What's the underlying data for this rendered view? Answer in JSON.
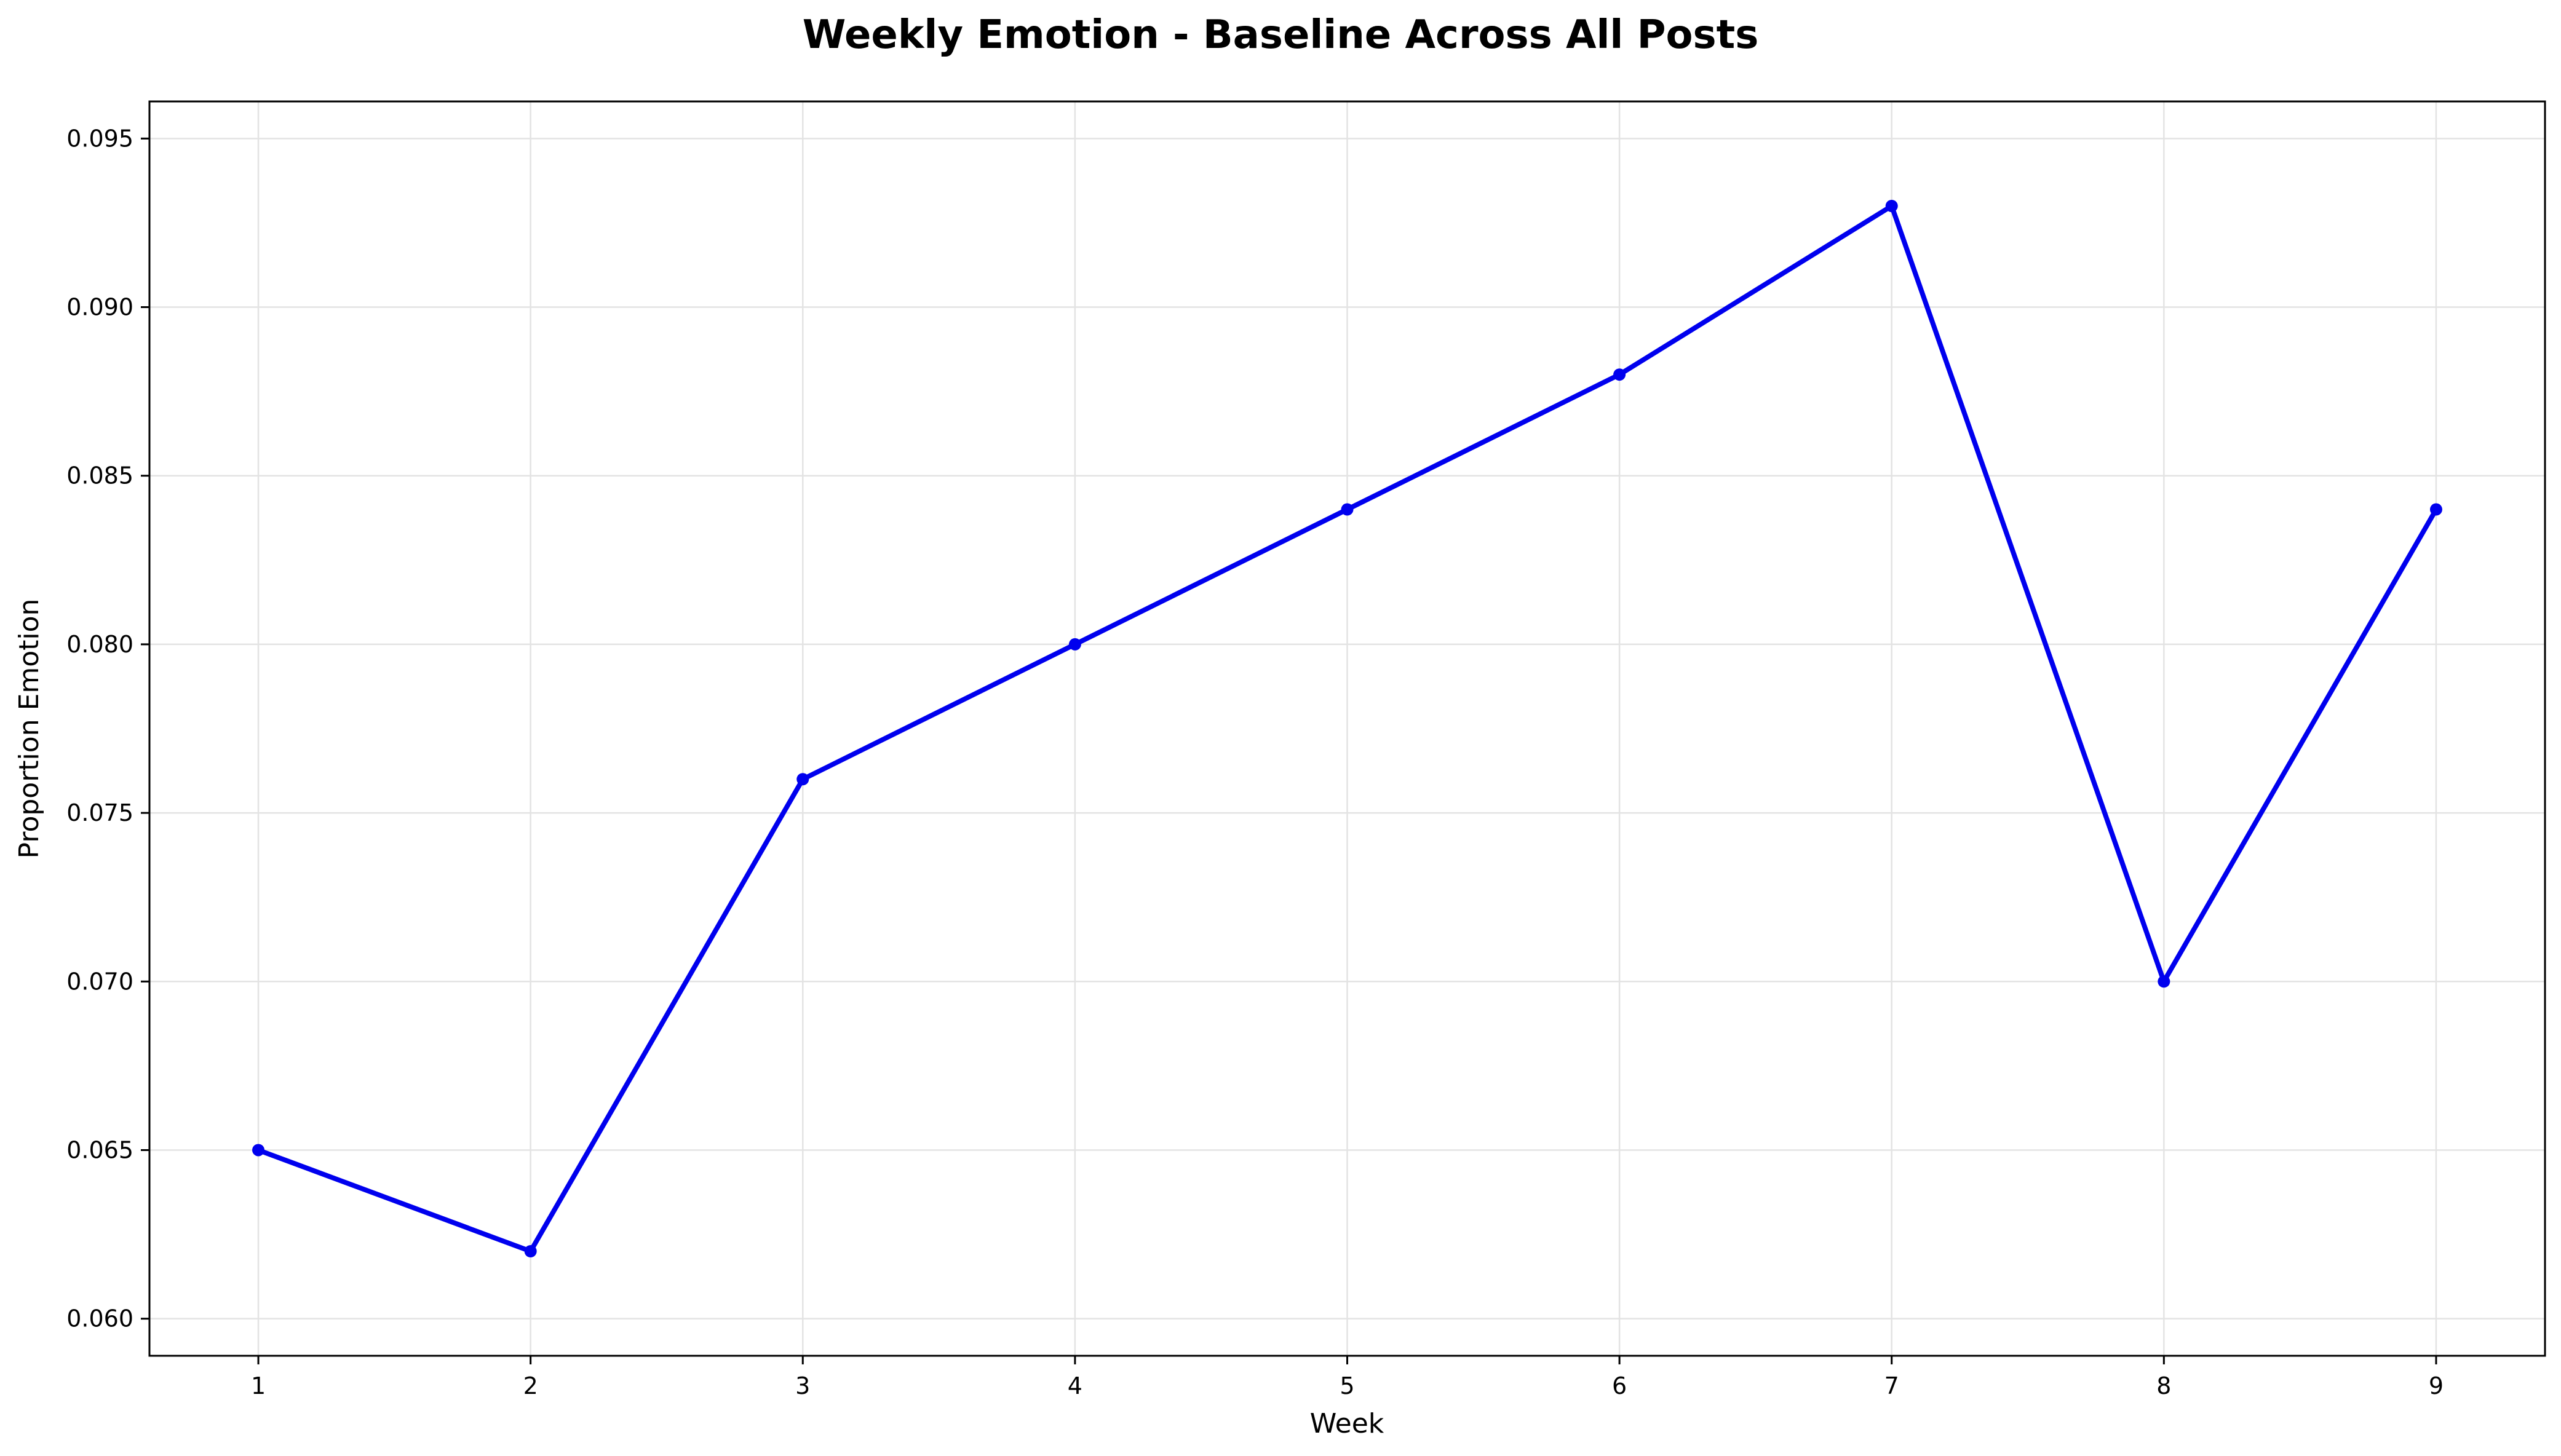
{
  "chart_data": {
    "type": "line",
    "title": "Weekly Emotion - Baseline Across All Posts",
    "xlabel": "Week",
    "ylabel": "Proportion Emotion",
    "x": [
      1,
      2,
      3,
      4,
      5,
      6,
      7,
      8,
      9
    ],
    "series": [
      {
        "values": [
          0.065,
          0.062,
          0.076,
          0.08,
          0.084,
          0.088,
          0.093,
          0.07,
          0.084
        ]
      }
    ],
    "xlim": [
      0.6,
      9.4
    ],
    "ylim": [
      0.0589,
      0.0961
    ],
    "x_ticks": [
      "1",
      "2",
      "3",
      "4",
      "5",
      "6",
      "7",
      "8",
      "9"
    ],
    "y_ticks": [
      "0.060",
      "0.065",
      "0.070",
      "0.075",
      "0.080",
      "0.085",
      "0.090",
      "0.095"
    ],
    "grid": true,
    "legend": "none",
    "colors": {
      "line": "#0000ee",
      "grid": "#e3e3e3",
      "axes": "#000000"
    }
  }
}
